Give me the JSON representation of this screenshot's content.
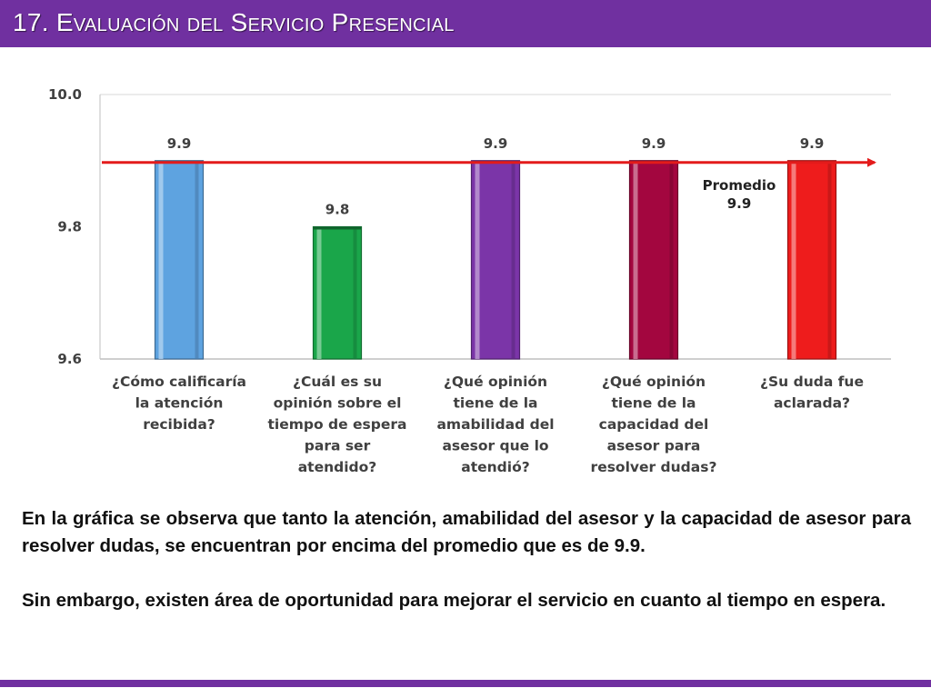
{
  "slide": {
    "title": "17. Evaluación del Servicio Presencial"
  },
  "chart_data": {
    "type": "bar",
    "title": "",
    "xlabel": "",
    "ylabel": "",
    "ylim": [
      9.6,
      10.0
    ],
    "yticks": [
      "9.6",
      "9.8",
      "10.0"
    ],
    "grid": false,
    "categories": [
      [
        "¿Cómo calificaría",
        "la atención",
        "recibida?"
      ],
      [
        "¿Cuál es su",
        "opinión sobre el",
        "tiempo de espera",
        "para ser",
        "atendido?"
      ],
      [
        "¿Qué opinión",
        "tiene de la",
        "amabilidad del",
        "asesor que lo",
        "atendió?"
      ],
      [
        "¿Qué opinión",
        "tiene de la",
        "capacidad del",
        "asesor para",
        "resolver dudas?"
      ],
      [
        "¿Su duda fue",
        "aclarada?"
      ]
    ],
    "values": [
      9.9,
      9.8,
      9.9,
      9.9,
      9.9
    ],
    "data_labels": [
      "9.9",
      "9.8",
      "9.9",
      "9.9",
      "9.9"
    ],
    "colors": [
      "#5ea3e0",
      "#1aa64a",
      "#7b35a8",
      "#a3063f",
      "#ee1c1c"
    ],
    "average": {
      "value": 9.9,
      "label_lines": [
        "Promedio",
        "9.9"
      ],
      "color": "#e31b1b"
    }
  },
  "commentary": {
    "paragraph1": "En la gráfica se observa que tanto la atención, amabilidad del asesor y la capacidad de asesor para resolver dudas, se encuentran por encima del promedio que es de 9.9.",
    "paragraph2": "Sin embargo, existen área de oportunidad para mejorar el servicio en cuanto al tiempo en espera."
  }
}
